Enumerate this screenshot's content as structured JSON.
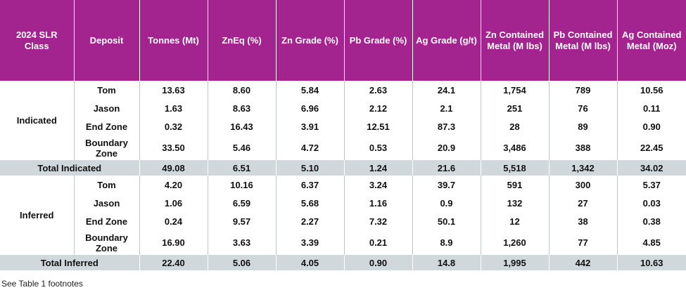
{
  "headers": [
    "2024 SLR Class",
    "Deposit",
    "Tonnes (Mt)",
    "ZnEq (%)",
    "Zn Grade (%)",
    "Pb Grade (%)",
    "Ag Grade (g/t)",
    "Zn Contained Metal (M lbs)",
    "Pb Contained Metal (M lbs)",
    "Ag Contained Metal (Moz)"
  ],
  "indicated": {
    "class_label": "Indicated",
    "rows": [
      {
        "deposit": "Tom",
        "tonnes": "13.63",
        "zneq": "8.60",
        "zn": "5.84",
        "pb": "2.63",
        "ag": "24.1",
        "zn_metal": "1,754",
        "pb_metal": "789",
        "ag_metal": "10.56"
      },
      {
        "deposit": "Jason",
        "tonnes": "1.63",
        "zneq": "8.63",
        "zn": "6.96",
        "pb": "2.12",
        "ag": "2.1",
        "zn_metal": "251",
        "pb_metal": "76",
        "ag_metal": "0.11"
      },
      {
        "deposit": "End Zone",
        "tonnes": "0.32",
        "zneq": "16.43",
        "zn": "3.91",
        "pb": "12.51",
        "ag": "87.3",
        "zn_metal": "28",
        "pb_metal": "89",
        "ag_metal": "0.90"
      },
      {
        "deposit": "Boundary Zone",
        "tonnes": "33.50",
        "zneq": "5.46",
        "zn": "4.72",
        "pb": "0.53",
        "ag": "20.9",
        "zn_metal": "3,486",
        "pb_metal": "388",
        "ag_metal": "22.45"
      }
    ],
    "total": {
      "label": "Total Indicated",
      "tonnes": "49.08",
      "zneq": "6.51",
      "zn": "5.10",
      "pb": "1.24",
      "ag": "21.6",
      "zn_metal": "5,518",
      "pb_metal": "1,342",
      "ag_metal": "34.02"
    }
  },
  "inferred": {
    "class_label": "Inferred",
    "rows": [
      {
        "deposit": "Tom",
        "tonnes": "4.20",
        "zneq": "10.16",
        "zn": "6.37",
        "pb": "3.24",
        "ag": "39.7",
        "zn_metal": "591",
        "pb_metal": "300",
        "ag_metal": "5.37"
      },
      {
        "deposit": "Jason",
        "tonnes": "1.06",
        "zneq": "6.59",
        "zn": "5.68",
        "pb": "1.16",
        "ag": "0.9",
        "zn_metal": "132",
        "pb_metal": "27",
        "ag_metal": "0.03"
      },
      {
        "deposit": "End Zone",
        "tonnes": "0.24",
        "zneq": "9.57",
        "zn": "2.27",
        "pb": "7.32",
        "ag": "50.1",
        "zn_metal": "12",
        "pb_metal": "38",
        "ag_metal": "0.38"
      },
      {
        "deposit": "Boundary Zone",
        "tonnes": "16.90",
        "zneq": "3.63",
        "zn": "3.39",
        "pb": "0.21",
        "ag": "8.9",
        "zn_metal": "1,260",
        "pb_metal": "77",
        "ag_metal": "4.85"
      }
    ],
    "total": {
      "label": "Total Inferred",
      "tonnes": "22.40",
      "zneq": "5.06",
      "zn": "4.05",
      "pb": "0.90",
      "ag": "14.8",
      "zn_metal": "1,995",
      "pb_metal": "442",
      "ag_metal": "10.63"
    }
  },
  "footnote": "See Table 1 footnotes",
  "colors": {
    "header_bg": "#A3238F",
    "total_bg": "#D0D8DB"
  }
}
